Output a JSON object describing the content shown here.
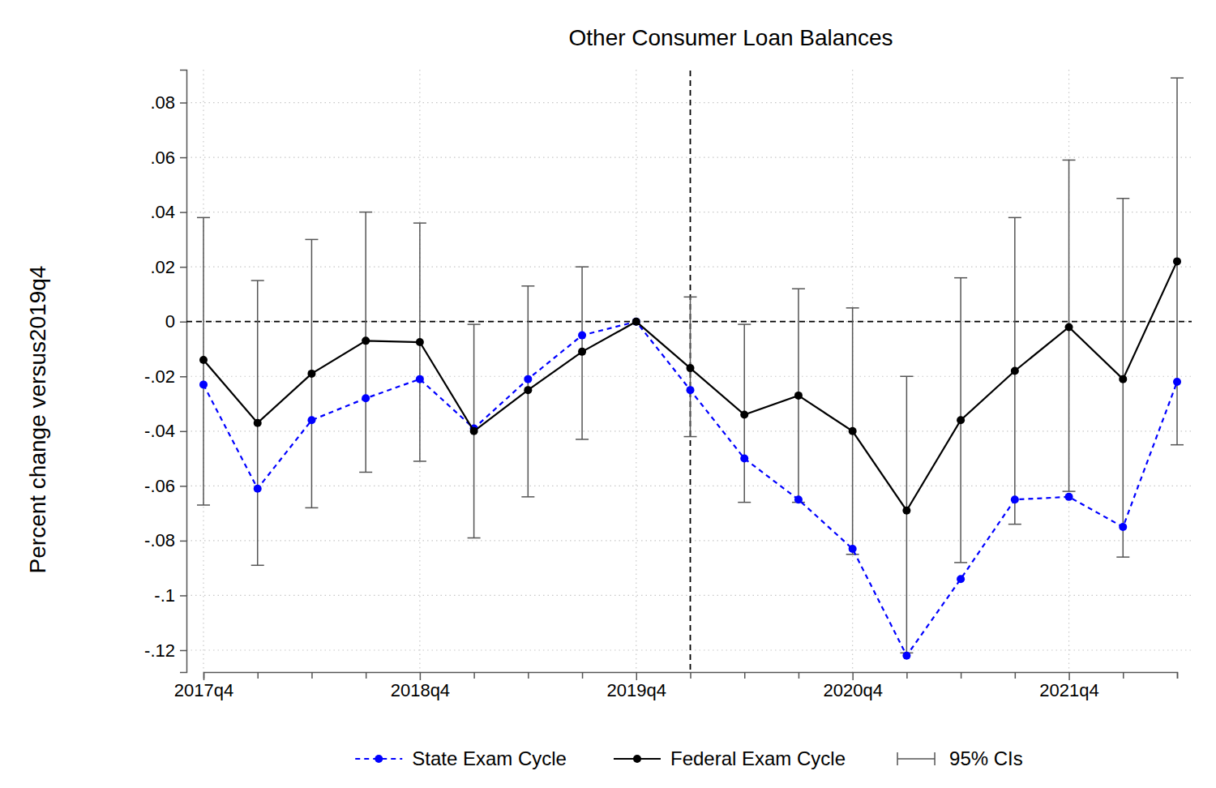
{
  "chart_data": {
    "type": "line",
    "title": "Other Consumer Loan Balances",
    "y_label": "Percent change versus2019q4",
    "categories": [
      "2017q4",
      null,
      null,
      null,
      "2018q4",
      null,
      null,
      null,
      "2019q4",
      null,
      null,
      null,
      "2020q4",
      null,
      null,
      null,
      "2021q4",
      null,
      null
    ],
    "series": [
      {
        "name": "State Exam Cycle",
        "color": "#0000ff",
        "marker": "circle",
        "line_style": "dashed",
        "values": [
          -0.023,
          -0.061,
          -0.036,
          -0.028,
          -0.021,
          -0.039,
          -0.021,
          -0.005,
          0,
          -0.025,
          -0.05,
          -0.065,
          -0.083,
          -0.122,
          -0.094,
          -0.065,
          -0.064,
          -0.075,
          -0.022
        ]
      },
      {
        "name": "Federal Exam Cycle",
        "color": "#000000",
        "marker": "circle",
        "line_style": "solid",
        "values": [
          -0.014,
          -0.037,
          -0.019,
          -0.007,
          -0.0075,
          -0.04,
          -0.025,
          -0.011,
          0,
          -0.017,
          -0.034,
          -0.027,
          -0.04,
          -0.069,
          -0.036,
          -0.018,
          -0.002,
          -0.021,
          0.022
        ],
        "ci_name": "95% CIs",
        "ci_low": [
          -0.067,
          -0.089,
          -0.068,
          -0.055,
          -0.051,
          -0.079,
          -0.064,
          -0.043,
          null,
          -0.042,
          -0.066,
          -0.066,
          -0.085,
          -0.121,
          -0.088,
          -0.074,
          -0.062,
          -0.086,
          -0.045
        ],
        "ci_high": [
          0.038,
          0.015,
          0.03,
          0.04,
          0.036,
          -0.001,
          0.013,
          0.02,
          null,
          0.009,
          -0.001,
          0.012,
          0.005,
          -0.02,
          0.016,
          0.038,
          0.059,
          0.045,
          0.089
        ]
      }
    ],
    "ylim": [
      -0.128,
      0.092
    ],
    "yticks": [
      {
        "value": 0.08,
        "label": ".08"
      },
      {
        "value": 0.06,
        "label": ".06"
      },
      {
        "value": 0.04,
        "label": ".04"
      },
      {
        "value": 0.02,
        "label": ".02"
      },
      0,
      {
        "value": -0.02,
        "label": "-.02"
      },
      {
        "value": -0.04,
        "label": "-.04"
      },
      {
        "value": -0.06,
        "label": "-.06"
      },
      {
        "value": -0.08,
        "label": "-.08"
      },
      {
        "value": -0.1,
        "label": "-.1"
      },
      {
        "value": -0.12,
        "label": "-.12"
      }
    ],
    "reference_x": 9,
    "reference_y": 0,
    "grid": true,
    "legend": "bottom"
  }
}
